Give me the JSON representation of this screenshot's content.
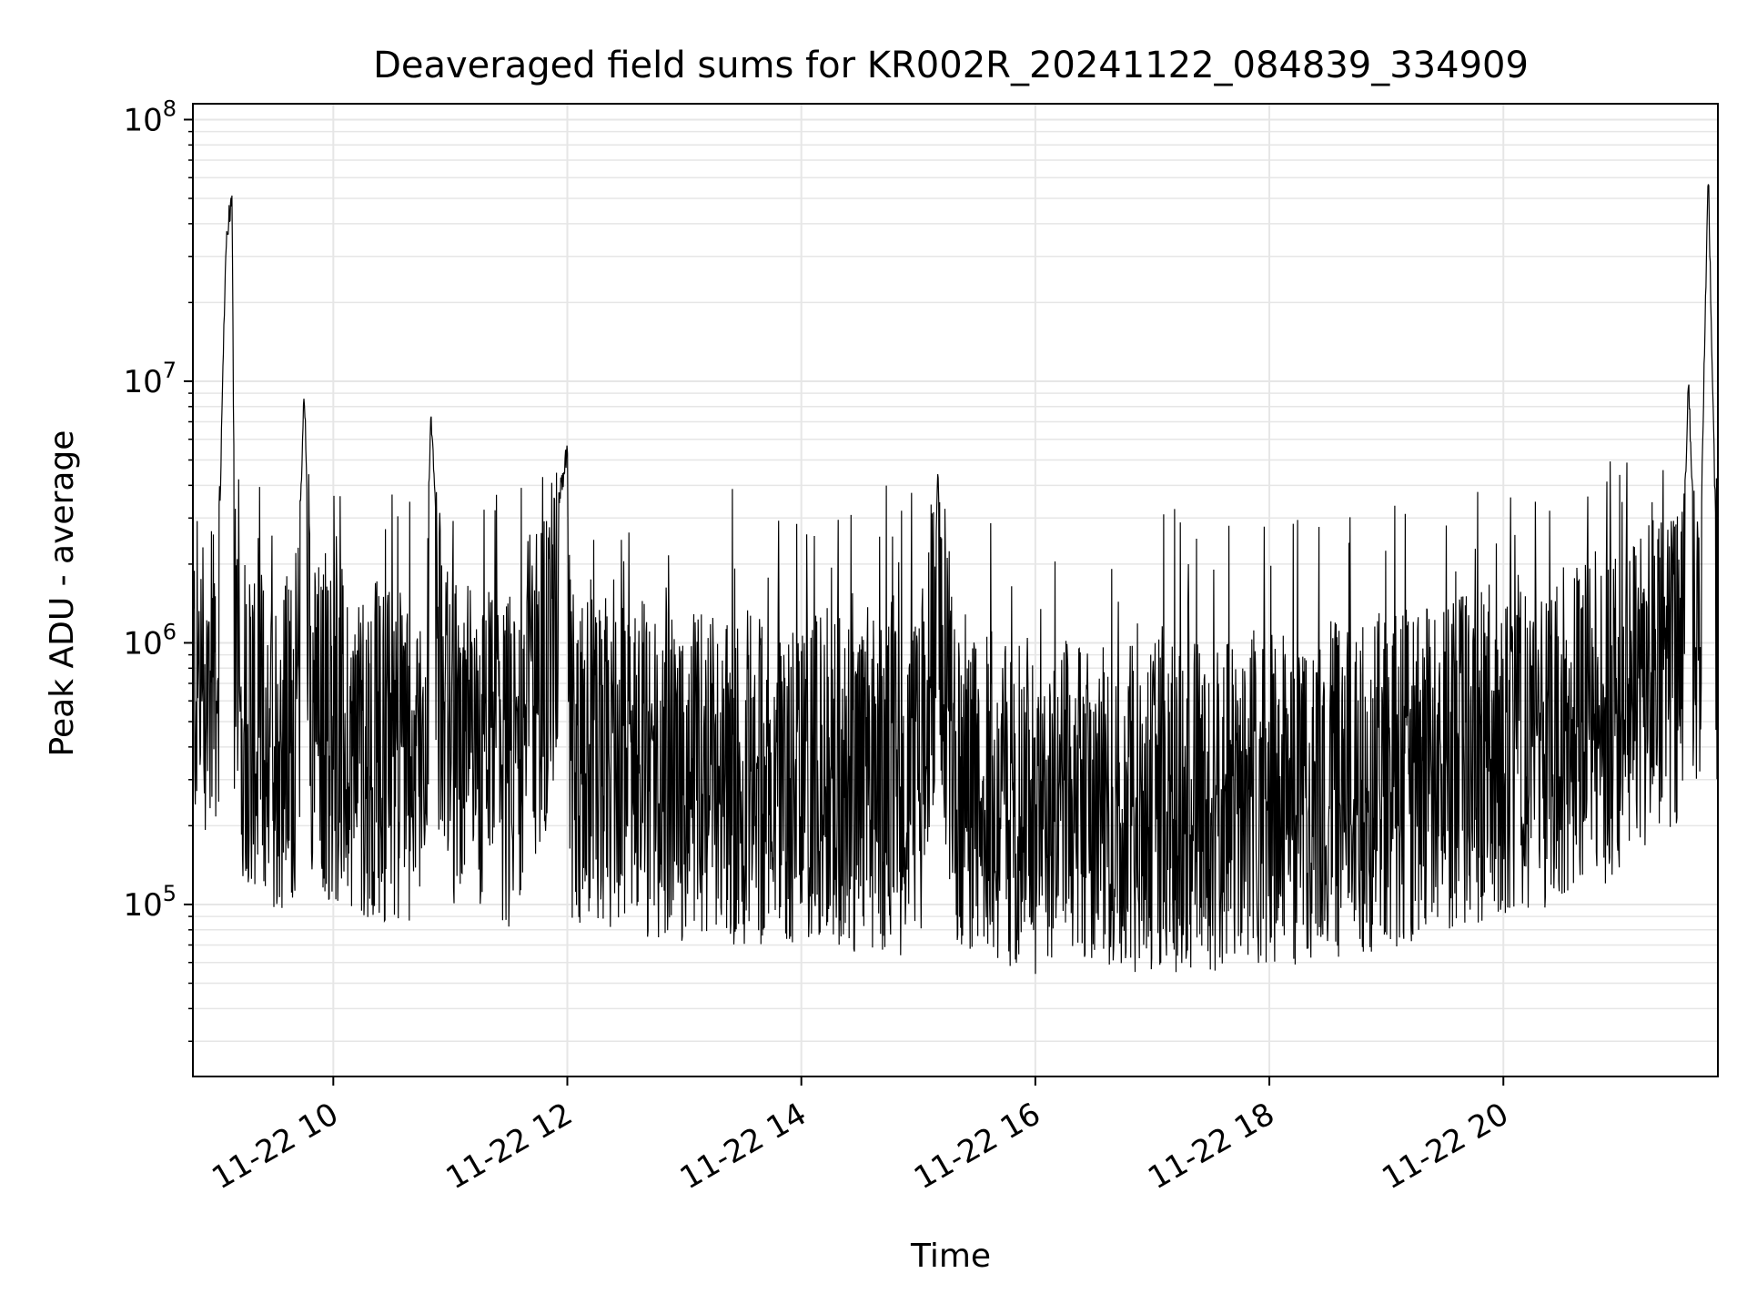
{
  "chart_data": {
    "type": "line",
    "title": "Deaveraged field sums for KR002R_20241122_084839_334909",
    "xlabel": "Time",
    "ylabel": "Peak ADU - average",
    "yscale": "log",
    "ylim": [
      22000,
      115000000
    ],
    "xlim": [
      "2024-11-22 08:48",
      "2024-11-22 21:50"
    ],
    "grid": true,
    "line_color": "#000000",
    "grid_color": "#e6e6e6",
    "x_ticks": [
      {
        "label": "11-22 10",
        "time": "2024-11-22 10:00"
      },
      {
        "label": "11-22 12",
        "time": "2024-11-22 12:00"
      },
      {
        "label": "11-22 14",
        "time": "2024-11-22 14:00"
      },
      {
        "label": "11-22 16",
        "time": "2024-11-22 16:00"
      },
      {
        "label": "11-22 18",
        "time": "2024-11-22 18:00"
      },
      {
        "label": "11-22 20",
        "time": "2024-11-22 20:00"
      }
    ],
    "y_ticks": [
      {
        "base": "10",
        "exp": "5",
        "value": 100000
      },
      {
        "base": "10",
        "exp": "6",
        "value": 1000000
      },
      {
        "base": "10",
        "exp": "7",
        "value": 10000000
      },
      {
        "base": "10",
        "exp": "8",
        "value": 100000000
      }
    ],
    "series": [
      {
        "x": [
          "2024-11-22 08:48",
          "2024-11-22 08:55",
          "2024-11-22 09:00",
          "2024-11-22 09:05",
          "2024-11-22 09:08",
          "2024-11-22 09:10",
          "2024-11-22 09:20",
          "2024-11-22 09:30",
          "2024-11-22 09:40",
          "2024-11-22 09:45",
          "2024-11-22 09:50",
          "2024-11-22 10:00",
          "2024-11-22 10:15",
          "2024-11-22 10:30",
          "2024-11-22 10:45",
          "2024-11-22 10:50",
          "2024-11-22 11:00",
          "2024-11-22 11:15",
          "2024-11-22 11:30",
          "2024-11-22 12:00",
          "2024-11-22 12:02",
          "2024-11-22 12:30",
          "2024-11-22 13:00",
          "2024-11-22 13:30",
          "2024-11-22 14:00",
          "2024-11-22 14:30",
          "2024-11-22 15:00",
          "2024-11-22 15:10",
          "2024-11-22 15:20",
          "2024-11-22 15:40",
          "2024-11-22 16:00",
          "2024-11-22 16:30",
          "2024-11-22 17:00",
          "2024-11-22 17:30",
          "2024-11-22 18:00",
          "2024-11-22 18:30",
          "2024-11-22 19:00",
          "2024-11-22 19:30",
          "2024-11-22 20:00",
          "2024-11-22 20:30",
          "2024-11-22 21:00",
          "2024-11-22 21:15",
          "2024-11-22 21:30",
          "2024-11-22 21:35",
          "2024-11-22 21:40",
          "2024-11-22 21:45",
          "2024-11-22 21:50"
        ],
        "values": [
          800000,
          650000,
          900000,
          40000000,
          58000000,
          600000,
          500000,
          400000,
          450000,
          11000000,
          500000,
          450000,
          400000,
          380000,
          350000,
          8500000,
          400000,
          380000,
          360000,
          6000000,
          350000,
          330000,
          320000,
          310000,
          300000,
          290000,
          270000,
          4800000,
          260000,
          250000,
          240000,
          230000,
          230000,
          240000,
          250000,
          270000,
          300000,
          350000,
          400000,
          450000,
          550000,
          650000,
          900000,
          11000000,
          1000000,
          75000000,
          1200000
        ],
        "noise_envelope": {
          "low": 50000,
          "high": 2500000
        }
      }
    ]
  }
}
